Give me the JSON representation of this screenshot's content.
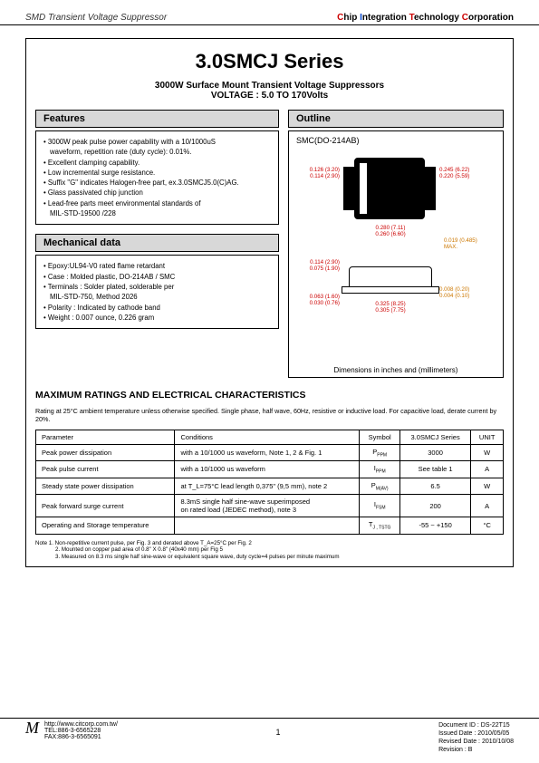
{
  "header": {
    "left": "SMD Transient Voltage Suppressor",
    "right_plain_words": [
      "hip ",
      "ntegration ",
      "echnology ",
      "orporation"
    ],
    "right_color_letters": [
      "C",
      "I",
      "T",
      "C"
    ]
  },
  "title": {
    "big": "3.0SMCJ Series",
    "sub1": "3000W Surface Mount Transient Voltage Suppressors",
    "sub2": "VOLTAGE : 5.0 TO 170Volts"
  },
  "features": {
    "h": "Features",
    "items": [
      "3000W peak pulse power capability with a 10/1000uS",
      "  waveform, repetition rate (duty cycle): 0.01%.",
      "Excellent clamping capability.",
      "Low incremental surge resistance.",
      "Suffix \"G\" indicates Halogen-free part, ex.3.0SMCJ5.0(C)AG.",
      "Glass passivated chip junction",
      "Lead-free parts meet environmental standards of",
      "  MIL-STD-19500 /228"
    ],
    "cont_idx": [
      1,
      7
    ]
  },
  "mech": {
    "h": "Mechanical data",
    "items": [
      "Epoxy:UL94-V0 rated flame retardant",
      "Case : Molded plastic,  DO-214AB / SMC",
      "Terminals : Solder plated, solderable per",
      "                   MIL-STD-750, Method 2026",
      "Polarity : Indicated by cathode band",
      "Weight : 0.007 ounce,  0.226 gram"
    ],
    "cont_idx": [
      3
    ]
  },
  "outline": {
    "h": "Outline",
    "pkg": "SMC(DO-214AB)",
    "dim_text": "Dimensions in inches and (millimeters)",
    "dims": {
      "d1a": "0.126 (3.20)",
      "d1b": "0.114 (2.90)",
      "d2a": "0.245 (6.22)",
      "d2b": "0.220 (5.59)",
      "d3a": "0.280 (7.11)",
      "d3b": "0.260 (6.60)",
      "d4a": "0.019 (0.485)",
      "d4b": "MAX.",
      "d5a": "0.114 (2.90)",
      "d5b": "0.075 (1.90)",
      "d6a": "0.063 (1.60)",
      "d6b": "0.030 (0.76)",
      "d7a": "0.008 (0.20)",
      "d7b": "0.004 (0.10)",
      "d8a": "0.325 (8.25)",
      "d8b": "0.305 (7.75)"
    }
  },
  "max_ratings": {
    "h": "MAXIMUM RATINGS AND ELECTRICAL CHARACTERISTICS",
    "note": "Rating at 25°C ambient temperature unless otherwise specified. Single phase, half wave, 60Hz, resistive or inductive load. For capacitive load, derate current by 20%.",
    "cols": [
      "Parameter",
      "Conditions",
      "Symbol",
      "3.0SMCJ Series",
      "UNIT"
    ],
    "rows": [
      [
        "Peak power dissipation",
        "with a 10/1000 us waveform, Note 1, 2 & Fig. 1",
        "P",
        "3000",
        "W"
      ],
      [
        "Peak pulse current",
        "with a 10/1000 us waveform",
        "I",
        "See table 1",
        "A"
      ],
      [
        "Steady state power dissipation",
        "at T_L=75°C lead length 0,375\" (9,5 mm), note 2",
        "P",
        "6.5",
        "W"
      ],
      [
        "Peak forward surge current",
        "8.3mS single half sine-wave superimposed\non rated load (JEDEC method), note 3",
        "I",
        "200",
        "A"
      ],
      [
        "Operating and Storage temperature",
        "",
        "T",
        "-55 ~ +150",
        "°C"
      ]
    ],
    "symbols_sub": [
      "PPM",
      "PPM",
      "M(AV)",
      "FSM",
      "J , TSTG"
    ]
  },
  "notes": {
    "l1": "Note 1. Non-repetitive current pulse, per Fig. 3 and derated above T_A=25°C per Fig. 2",
    "l2": "2. Mounted on copper pad area of 0.8\" X 0.8\" (40x40 mm) per Fig 5",
    "l3": "3. Measured on 8.3 ms single half sine-wave or equivalent square wave, duty cycle=4 pulses per minute maximum"
  },
  "footer": {
    "url": "http://www.citcorp.com.tw/",
    "tel": "TEL:886-3-6565228",
    "fax": "FAX:886-3-6565091",
    "page": "1",
    "doc": "Document ID : DS-22T15",
    "issued": "Issued Date : 2010/05/05",
    "revised": "Revised Date : 2010/10/08",
    "rev": "Revision : B"
  }
}
